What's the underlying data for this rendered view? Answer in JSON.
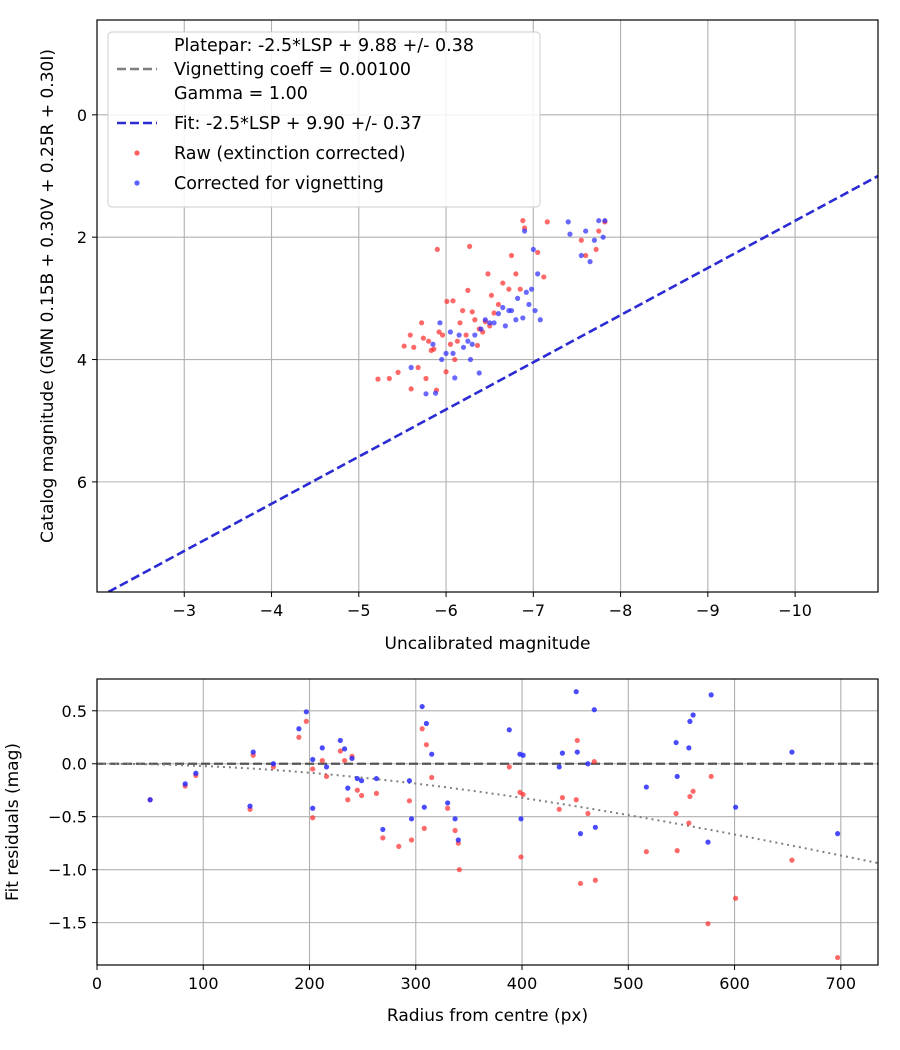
{
  "chart_data": [
    {
      "type": "scatter",
      "xlabel": "Uncalibrated magnitude",
      "ylabel": "Catalog magnitude (GMN 0.15B + 0.30V + 0.25R + 0.30I)",
      "xlim": [
        -2.0,
        -10.95
      ],
      "ylim": [
        7.8,
        -1.55
      ],
      "x_inverted": true,
      "y_inverted": true,
      "xticks": [
        -3,
        -4,
        -5,
        -6,
        -7,
        -8,
        -9,
        -10
      ],
      "xtick_labels": [
        "−3",
        "−4",
        "−5",
        "−6",
        "−7",
        "−8",
        "−9",
        "−10"
      ],
      "yticks": [
        0,
        2,
        4,
        6
      ],
      "ytick_labels": [
        "0",
        "2",
        "4",
        "6"
      ],
      "grid": true,
      "legend_position": "top-left",
      "legend": [
        {
          "label": "Platepar: -2.5*LSP + 9.88 +/- 0.38",
          "style": "none"
        },
        {
          "label": "Vignetting coeff = 0.00100",
          "style": "dashed",
          "color": "#7f7f7f"
        },
        {
          "label": "Gamma = 1.00",
          "style": "none"
        },
        {
          "label": "Fit: -2.5*LSP + 9.90 +/- 0.37",
          "style": "dashed",
          "color": "#2b2bd4"
        },
        {
          "label": "Raw (extinction corrected)",
          "style": "marker",
          "color": "#ff2a2a"
        },
        {
          "label": "Corrected for vignetting",
          "style": "marker",
          "color": "#2a2aff"
        }
      ],
      "lines": [
        {
          "name": "Fit",
          "x": [
            -2.0,
            -10.95
          ],
          "y": [
            7.9,
            1.0
          ],
          "color": "#2b2bd4",
          "dash": "dashed",
          "slope": -2.5,
          "intercept": 9.9
        },
        {
          "name": "Platepar",
          "slope": -2.5,
          "intercept": 9.88,
          "color": "#7f7f7f",
          "dash": "dashed"
        }
      ],
      "series": [
        {
          "name": "Raw (extinction corrected)",
          "color": "#ff2a2a",
          "points": [
            [
              -5.22,
              4.32
            ],
            [
              -5.35,
              4.31
            ],
            [
              -5.45,
              4.21
            ],
            [
              -5.52,
              3.78
            ],
            [
              -5.59,
              3.6
            ],
            [
              -5.6,
              4.48
            ],
            [
              -5.63,
              3.8
            ],
            [
              -5.68,
              4.13
            ],
            [
              -5.72,
              3.4
            ],
            [
              -5.74,
              3.65
            ],
            [
              -5.77,
              4.31
            ],
            [
              -5.8,
              3.7
            ],
            [
              -5.83,
              3.85
            ],
            [
              -5.86,
              3.83
            ],
            [
              -5.89,
              4.5
            ],
            [
              -5.9,
              2.2
            ],
            [
              -5.92,
              3.55
            ],
            [
              -5.96,
              3.6
            ],
            [
              -6.0,
              4.2
            ],
            [
              -6.01,
              3.05
            ],
            [
              -6.05,
              3.75
            ],
            [
              -6.08,
              3.04
            ],
            [
              -6.1,
              4.0
            ],
            [
              -6.13,
              3.7
            ],
            [
              -6.16,
              3.4
            ],
            [
              -6.19,
              3.2
            ],
            [
              -6.23,
              3.6
            ],
            [
              -6.25,
              2.87
            ],
            [
              -6.27,
              2.15
            ],
            [
              -6.3,
              3.22
            ],
            [
              -6.33,
              3.35
            ],
            [
              -6.36,
              3.77
            ],
            [
              -6.38,
              3.5
            ],
            [
              -6.42,
              3.55
            ],
            [
              -6.45,
              3.38
            ],
            [
              -6.48,
              2.6
            ],
            [
              -6.5,
              3.45
            ],
            [
              -6.52,
              2.95
            ],
            [
              -6.55,
              3.24
            ],
            [
              -6.6,
              3.1
            ],
            [
              -6.65,
              2.75
            ],
            [
              -6.72,
              2.85
            ],
            [
              -6.75,
              2.3
            ],
            [
              -6.8,
              2.6
            ],
            [
              -6.85,
              2.85
            ],
            [
              -6.88,
              1.73
            ],
            [
              -6.9,
              1.85
            ],
            [
              -7.05,
              2.25
            ],
            [
              -7.12,
              2.65
            ],
            [
              -7.16,
              1.75
            ],
            [
              -7.55,
              2.05
            ],
            [
              -7.6,
              2.3
            ],
            [
              -7.72,
              2.2
            ],
            [
              -7.75,
              1.9
            ],
            [
              -7.82,
              1.75
            ]
          ]
        },
        {
          "name": "Corrected for vignetting",
          "color": "#2a2aff",
          "points": [
            [
              -5.6,
              4.13
            ],
            [
              -5.77,
              4.56
            ],
            [
              -5.85,
              3.75
            ],
            [
              -5.88,
              4.55
            ],
            [
              -5.93,
              3.4
            ],
            [
              -5.95,
              4.0
            ],
            [
              -6.0,
              3.9
            ],
            [
              -6.05,
              3.55
            ],
            [
              -6.08,
              3.9
            ],
            [
              -6.1,
              4.3
            ],
            [
              -6.15,
              3.6
            ],
            [
              -6.2,
              3.8
            ],
            [
              -6.25,
              3.7
            ],
            [
              -6.28,
              4.0
            ],
            [
              -6.3,
              3.75
            ],
            [
              -6.33,
              3.6
            ],
            [
              -6.38,
              4.22
            ],
            [
              -6.4,
              3.5
            ],
            [
              -6.45,
              3.35
            ],
            [
              -6.5,
              3.4
            ],
            [
              -6.55,
              3.4
            ],
            [
              -6.6,
              3.25
            ],
            [
              -6.65,
              3.15
            ],
            [
              -6.68,
              3.45
            ],
            [
              -6.72,
              3.2
            ],
            [
              -6.75,
              3.2
            ],
            [
              -6.8,
              3.35
            ],
            [
              -6.82,
              3.0
            ],
            [
              -6.88,
              3.32
            ],
            [
              -6.9,
              1.9
            ],
            [
              -6.92,
              2.9
            ],
            [
              -6.95,
              3.1
            ],
            [
              -6.98,
              2.85
            ],
            [
              -7.0,
              2.2
            ],
            [
              -7.02,
              3.2
            ],
            [
              -7.05,
              2.6
            ],
            [
              -7.08,
              3.35
            ],
            [
              -7.4,
              1.75
            ],
            [
              -7.42,
              1.95
            ],
            [
              -7.55,
              2.3
            ],
            [
              -7.6,
              1.9
            ],
            [
              -7.65,
              2.4
            ],
            [
              -7.7,
              2.05
            ],
            [
              -7.75,
              1.73
            ],
            [
              -7.8,
              2.0
            ],
            [
              -7.82,
              1.73
            ]
          ]
        }
      ]
    },
    {
      "type": "scatter",
      "xlabel": "Radius from centre (px)",
      "ylabel": "Fit residuals (mag)",
      "xlim": [
        0,
        735
      ],
      "ylim": [
        -1.9,
        0.8
      ],
      "xticks": [
        0,
        100,
        200,
        300,
        400,
        500,
        600,
        700
      ],
      "xtick_labels": [
        "0",
        "100",
        "200",
        "300",
        "400",
        "500",
        "600",
        "700"
      ],
      "yticks": [
        0.5,
        0.0,
        -0.5,
        -1.0,
        -1.5
      ],
      "ytick_labels": [
        "0.5",
        "0.0",
        "−0.5",
        "−1.0",
        "−1.5"
      ],
      "grid": true,
      "lines": [
        {
          "name": "zero-line",
          "y": 0.0,
          "color": "#555555",
          "dash": "dashed"
        },
        {
          "name": "vignetting-curve",
          "coeff": 0.001,
          "color": "#808080",
          "dash": "dotted"
        }
      ],
      "series": [
        {
          "name": "Raw (extinction corrected)",
          "color": "#ff2a2a",
          "points": [
            [
              50,
              -0.34
            ],
            [
              83,
              -0.21
            ],
            [
              93,
              -0.11
            ],
            [
              144,
              -0.43
            ],
            [
              147,
              0.08
            ],
            [
              166,
              -0.03
            ],
            [
              190,
              0.25
            ],
            [
              197,
              0.4
            ],
            [
              203,
              -0.51
            ],
            [
              203,
              -0.05
            ],
            [
              212,
              0.03
            ],
            [
              216,
              -0.12
            ],
            [
              229,
              0.12
            ],
            [
              233,
              0.03
            ],
            [
              236,
              -0.34
            ],
            [
              240,
              0.07
            ],
            [
              245,
              -0.25
            ],
            [
              249,
              -0.3
            ],
            [
              263,
              -0.28
            ],
            [
              269,
              -0.7
            ],
            [
              284,
              -0.78
            ],
            [
              294,
              -0.35
            ],
            [
              296,
              -0.72
            ],
            [
              306,
              0.33
            ],
            [
              308,
              -0.61
            ],
            [
              310,
              0.18
            ],
            [
              315,
              -0.13
            ],
            [
              330,
              -0.42
            ],
            [
              337,
              -0.63
            ],
            [
              340,
              -0.75
            ],
            [
              341,
              -1.0
            ],
            [
              388,
              -0.03
            ],
            [
              398,
              -0.27
            ],
            [
              399,
              -0.88
            ],
            [
              401,
              -0.29
            ],
            [
              435,
              -0.43
            ],
            [
              438,
              -0.32
            ],
            [
              451,
              -0.34
            ],
            [
              452,
              0.22
            ],
            [
              455,
              -1.13
            ],
            [
              462,
              -0.47
            ],
            [
              468,
              0.02
            ],
            [
              469,
              -1.1
            ],
            [
              517,
              -0.83
            ],
            [
              545,
              -0.47
            ],
            [
              546,
              -0.82
            ],
            [
              557,
              -0.56
            ],
            [
              558,
              -0.31
            ],
            [
              561,
              -0.26
            ],
            [
              575,
              -1.51
            ],
            [
              578,
              -0.12
            ],
            [
              601,
              -1.27
            ],
            [
              654,
              -0.91
            ],
            [
              697,
              -1.83
            ]
          ]
        },
        {
          "name": "Corrected for vignetting",
          "color": "#2a2aff",
          "points": [
            [
              50,
              -0.34
            ],
            [
              83,
              -0.19
            ],
            [
              93,
              -0.09
            ],
            [
              144,
              -0.4
            ],
            [
              147,
              0.11
            ],
            [
              166,
              0.0
            ],
            [
              190,
              0.33
            ],
            [
              197,
              0.49
            ],
            [
              203,
              -0.42
            ],
            [
              203,
              0.04
            ],
            [
              212,
              0.15
            ],
            [
              216,
              -0.03
            ],
            [
              229,
              0.22
            ],
            [
              233,
              0.14
            ],
            [
              236,
              -0.23
            ],
            [
              240,
              0.05
            ],
            [
              245,
              -0.14
            ],
            [
              249,
              -0.16
            ],
            [
              263,
              -0.14
            ],
            [
              269,
              -0.62
            ],
            [
              294,
              -0.16
            ],
            [
              296,
              -0.52
            ],
            [
              306,
              0.54
            ],
            [
              308,
              -0.41
            ],
            [
              310,
              0.38
            ],
            [
              315,
              0.09
            ],
            [
              330,
              -0.37
            ],
            [
              337,
              -0.52
            ],
            [
              340,
              -0.72
            ],
            [
              388,
              0.32
            ],
            [
              398,
              0.09
            ],
            [
              401,
              0.08
            ],
            [
              399,
              -0.52
            ],
            [
              435,
              -0.03
            ],
            [
              438,
              0.1
            ],
            [
              451,
              0.68
            ],
            [
              452,
              0.11
            ],
            [
              455,
              -0.66
            ],
            [
              462,
              0.0
            ],
            [
              468,
              0.51
            ],
            [
              469,
              -0.6
            ],
            [
              517,
              -0.22
            ],
            [
              545,
              0.2
            ],
            [
              546,
              -0.12
            ],
            [
              557,
              0.15
            ],
            [
              558,
              0.4
            ],
            [
              561,
              0.46
            ],
            [
              575,
              -0.74
            ],
            [
              578,
              0.65
            ],
            [
              601,
              -0.41
            ],
            [
              654,
              0.11
            ],
            [
              697,
              -0.66
            ]
          ]
        }
      ]
    }
  ]
}
